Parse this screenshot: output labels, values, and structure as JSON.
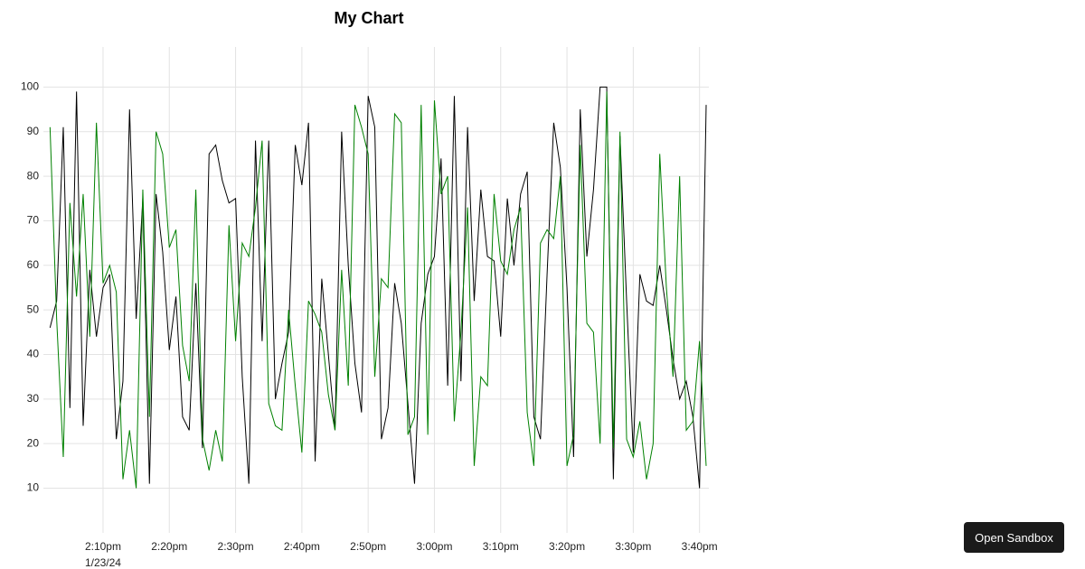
{
  "chart_data": {
    "type": "line",
    "title": "My Chart",
    "x": [
      "2:02pm",
      "2:03pm",
      "2:04pm",
      "2:05pm",
      "2:06pm",
      "2:07pm",
      "2:08pm",
      "2:09pm",
      "2:10pm",
      "2:11pm",
      "2:12pm",
      "2:13pm",
      "2:14pm",
      "2:15pm",
      "2:16pm",
      "2:17pm",
      "2:18pm",
      "2:19pm",
      "2:20pm",
      "2:21pm",
      "2:22pm",
      "2:23pm",
      "2:24pm",
      "2:25pm",
      "2:26pm",
      "2:27pm",
      "2:28pm",
      "2:29pm",
      "2:30pm",
      "2:31pm",
      "2:32pm",
      "2:33pm",
      "2:34pm",
      "2:35pm",
      "2:36pm",
      "2:37pm",
      "2:38pm",
      "2:39pm",
      "2:40pm",
      "2:41pm",
      "2:42pm",
      "2:43pm",
      "2:44pm",
      "2:45pm",
      "2:46pm",
      "2:47pm",
      "2:48pm",
      "2:49pm",
      "2:50pm",
      "2:51pm",
      "2:52pm",
      "2:53pm",
      "2:54pm",
      "2:55pm",
      "2:56pm",
      "2:57pm",
      "2:58pm",
      "2:59pm",
      "3:00pm",
      "3:01pm",
      "3:02pm",
      "3:03pm",
      "3:04pm",
      "3:05pm",
      "3:06pm",
      "3:07pm",
      "3:08pm",
      "3:09pm",
      "3:10pm",
      "3:11pm",
      "3:12pm",
      "3:13pm",
      "3:14pm",
      "3:15pm",
      "3:16pm",
      "3:17pm",
      "3:18pm",
      "3:19pm",
      "3:20pm",
      "3:21pm",
      "3:22pm",
      "3:23pm",
      "3:24pm",
      "3:25pm",
      "3:26pm",
      "3:27pm",
      "3:28pm",
      "3:29pm",
      "3:30pm",
      "3:31pm",
      "3:32pm",
      "3:33pm",
      "3:34pm",
      "3:35pm",
      "3:36pm",
      "3:37pm",
      "3:38pm",
      "3:39pm",
      "3:40pm",
      "3:41pm"
    ],
    "series": [
      {
        "color": "#000000",
        "values": [
          46,
          52,
          91,
          28,
          99,
          24,
          59,
          44,
          55,
          58,
          21,
          34,
          95,
          48,
          75,
          11,
          76,
          63,
          41,
          53,
          26,
          23,
          56,
          19,
          85,
          87,
          79,
          74,
          75,
          35,
          11,
          88,
          43,
          88,
          30,
          38,
          45,
          87,
          78,
          92,
          16,
          57,
          40,
          23,
          90,
          60,
          38,
          27,
          98,
          91,
          21,
          28,
          56,
          47,
          29,
          11,
          47,
          58,
          62,
          84,
          33,
          98,
          34,
          91,
          52,
          77,
          62,
          61,
          44,
          75,
          60,
          76,
          81,
          26,
          21,
          58,
          92,
          82,
          55,
          17,
          95,
          62,
          77,
          100,
          100,
          12,
          89,
          52,
          18,
          58,
          52,
          51,
          60,
          50,
          39,
          30,
          34,
          26,
          10,
          96
        ]
      },
      {
        "color": "#008000",
        "values": [
          91,
          48,
          17,
          74,
          53,
          76,
          44,
          92,
          56,
          60,
          54,
          12,
          23,
          10,
          77,
          26,
          90,
          85,
          64,
          68,
          42,
          34,
          77,
          21,
          14,
          23,
          16,
          69,
          43,
          65,
          62,
          73,
          88,
          29,
          24,
          23,
          50,
          33,
          18,
          52,
          49,
          45,
          31,
          23,
          59,
          33,
          96,
          91,
          85,
          35,
          57,
          55,
          94,
          92,
          22,
          26,
          96,
          22,
          97,
          76,
          80,
          25,
          45,
          73,
          15,
          35,
          33,
          76,
          61,
          58,
          68,
          73,
          27,
          15,
          65,
          68,
          66,
          80,
          15,
          22,
          87,
          47,
          45,
          20,
          99,
          19,
          90,
          21,
          17,
          25,
          12,
          20,
          85,
          55,
          35,
          80,
          23,
          25,
          43,
          15
        ]
      }
    ],
    "xlim": [
      "2:01pm",
      "3:41pm"
    ],
    "xticks": [
      "2:10pm",
      "2:20pm",
      "2:30pm",
      "2:40pm",
      "2:50pm",
      "3:00pm",
      "3:10pm",
      "3:20pm",
      "3:30pm",
      "3:40pm"
    ],
    "x_date_label": "1/23/24",
    "ylim": [
      2,
      109
    ],
    "yticks": [
      10,
      20,
      30,
      40,
      50,
      60,
      70,
      80,
      90,
      100
    ],
    "grid": true
  },
  "button": "Open Sandbox"
}
